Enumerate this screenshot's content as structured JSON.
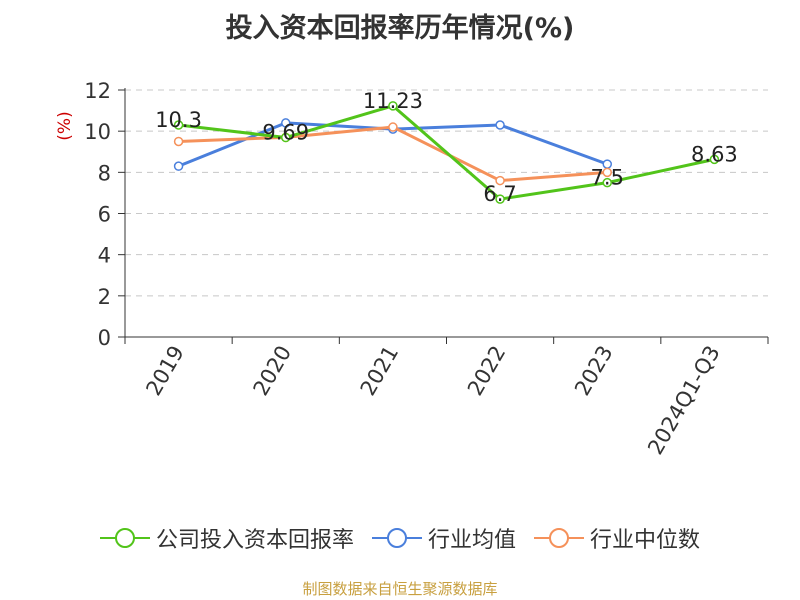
{
  "title": "投入资本回报率历年情况(%)",
  "source_note": "制图数据来自恒生聚源数据库",
  "colors": {
    "company": "#52c41a",
    "industry_avg": "#4a7fdc",
    "industry_median": "#f5915a",
    "grid": "#c8c8c8",
    "axis": "#333333",
    "ylabel": "#cc0000",
    "label": "#222222"
  },
  "chart_data": {
    "type": "line",
    "title": "投入资本回报率历年情况(%)",
    "xlabel": "",
    "ylabel": "(%)",
    "ylim": [
      0,
      12
    ],
    "yticks": [
      0,
      2,
      4,
      6,
      8,
      10,
      12
    ],
    "grid": true,
    "legend_position": "bottom",
    "categories": [
      "2019",
      "2020",
      "2021",
      "2022",
      "2023",
      "2024Q1-Q3"
    ],
    "series": [
      {
        "name": "公司投入资本回报率",
        "color_key": "company",
        "values": [
          10.3,
          9.69,
          11.23,
          6.7,
          7.5,
          8.63
        ],
        "show_labels": true,
        "label_texts": [
          "10.3",
          "9.69",
          "11.23",
          "6.7",
          "7.5",
          "8.63"
        ]
      },
      {
        "name": "行业均值",
        "color_key": "industry_avg",
        "values": [
          8.3,
          10.4,
          10.1,
          10.3,
          8.4,
          null
        ],
        "show_labels": false
      },
      {
        "name": "行业中位数",
        "color_key": "industry_median",
        "values": [
          9.5,
          9.7,
          10.2,
          7.6,
          8.0,
          null
        ],
        "show_labels": false
      }
    ]
  }
}
